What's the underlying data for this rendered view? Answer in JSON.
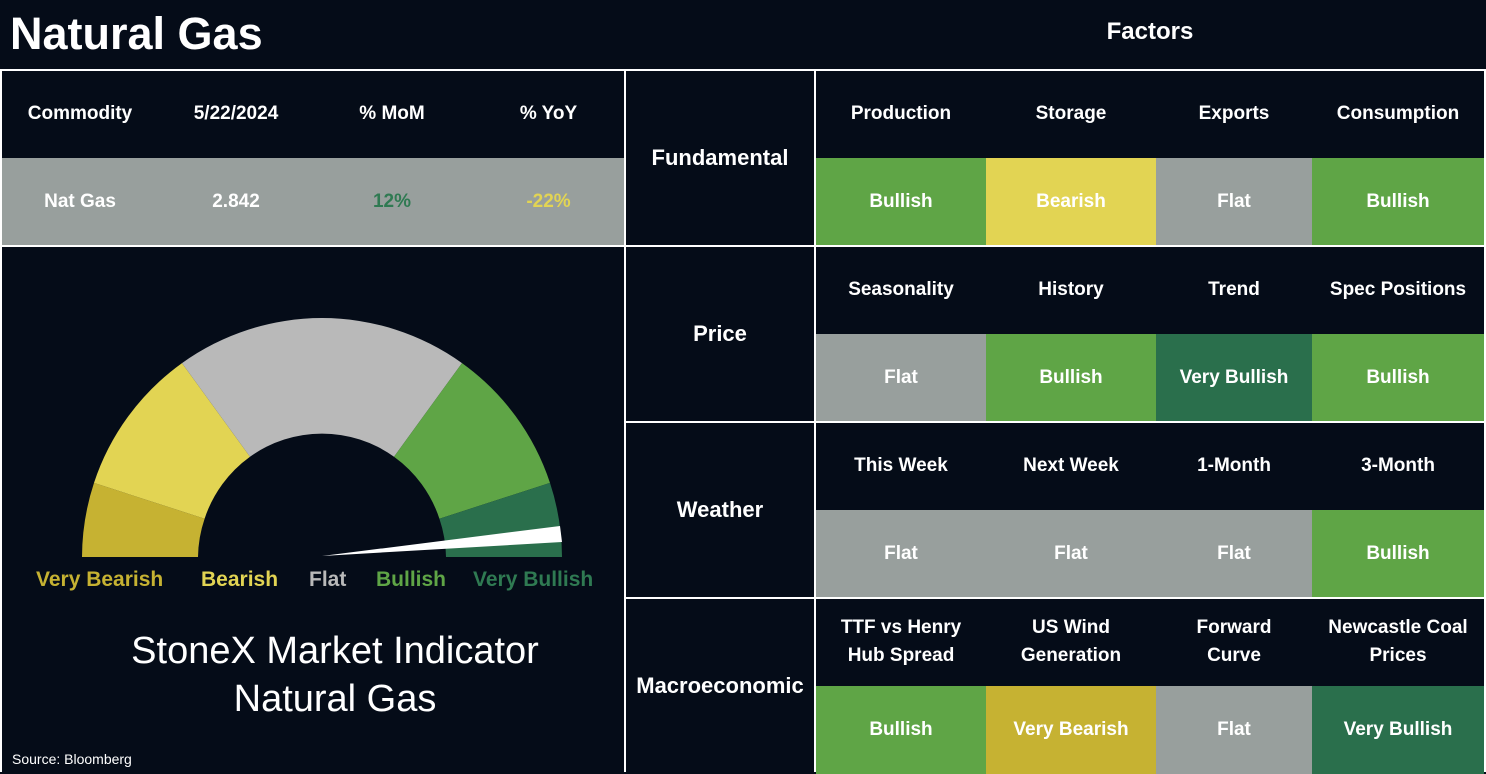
{
  "header": {
    "title": "Natural Gas",
    "factors_title": "Factors"
  },
  "colors": {
    "background": "#050c18",
    "very_bearish": "#c6b232",
    "bearish": "#e2d453",
    "flat": "#989f9d",
    "bullish": "#5fa546",
    "very_bullish": "#2a6f4c"
  },
  "commodity_table": {
    "headers": [
      "Commodity",
      "5/22/2024",
      "% MoM",
      "% YoY"
    ],
    "row": {
      "commodity": "Nat Gas",
      "price": "2.842",
      "mom": "12%",
      "yoy": "-22%",
      "mom_color": "#2f7a52",
      "yoy_color": "#e2d453"
    }
  },
  "gauge": {
    "legend": [
      "Very Bearish",
      "Bearish",
      "Flat",
      "Bullish",
      "Very Bullish"
    ],
    "caption_line1": "StoneX Market Indicator",
    "caption_line2": "Natural Gas",
    "needle_level": "Very Bullish"
  },
  "source": "Source: Bloomberg",
  "factor_groups": [
    {
      "name": "Fundamental",
      "factors": [
        {
          "label": "Production",
          "signal": "Bullish",
          "color": "#5fa546"
        },
        {
          "label": "Storage",
          "signal": "Bearish",
          "color": "#e2d453"
        },
        {
          "label": "Exports",
          "signal": "Flat",
          "color": "#989f9d"
        },
        {
          "label": "Consumption",
          "signal": "Bullish",
          "color": "#5fa546"
        }
      ]
    },
    {
      "name": "Price",
      "factors": [
        {
          "label": "Seasonality",
          "signal": "Flat",
          "color": "#989f9d"
        },
        {
          "label": "History",
          "signal": "Bullish",
          "color": "#5fa546"
        },
        {
          "label": "Trend",
          "signal": "Very Bullish",
          "color": "#2a6f4c"
        },
        {
          "label": "Spec Positions",
          "signal": "Bullish",
          "color": "#5fa546"
        }
      ]
    },
    {
      "name": "Weather",
      "factors": [
        {
          "label": "This Week",
          "signal": "Flat",
          "color": "#989f9d"
        },
        {
          "label": "Next Week",
          "signal": "Flat",
          "color": "#989f9d"
        },
        {
          "label": "1-Month",
          "signal": "Flat",
          "color": "#989f9d"
        },
        {
          "label": "3-Month",
          "signal": "Bullish",
          "color": "#5fa546"
        }
      ]
    },
    {
      "name": "Macroeconomic",
      "factors": [
        {
          "label": "TTF vs Henry Hub Spread",
          "signal": "Bullish",
          "color": "#5fa546"
        },
        {
          "label": "US Wind Generation",
          "signal": "Very Bearish",
          "color": "#c6b232"
        },
        {
          "label": "Forward Curve",
          "signal": "Flat",
          "color": "#989f9d"
        },
        {
          "label": "Newcastle Coal Prices",
          "signal": "Very Bullish",
          "color": "#2a6f4c"
        }
      ]
    }
  ]
}
